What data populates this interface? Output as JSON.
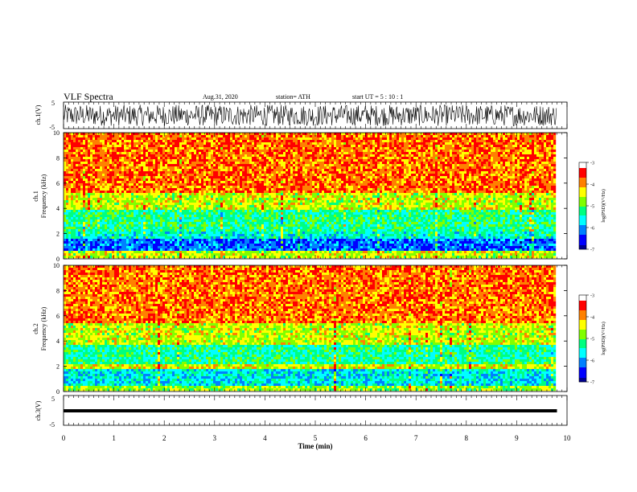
{
  "header": {
    "title": "VLF Spectra",
    "date": "Aug.31, 2020",
    "station": "station= ATH",
    "start": "start  UT =   5  : 10 : 1"
  },
  "chart_data": [
    {
      "type": "line",
      "name": "ch1-waveform",
      "ylabel": "ch.1(V)",
      "ylim": [
        -5,
        5
      ],
      "yticks": [
        "5",
        "-5"
      ],
      "xlim": [
        0,
        10
      ],
      "x_extent_data": 9.8,
      "envelope": {
        "min": -4,
        "max": 4
      }
    },
    {
      "type": "heatmap",
      "name": "ch1-spectrogram",
      "ylabel": "ch.1\nFrequency (kHz)",
      "ylim": [
        0,
        10
      ],
      "yticks": [
        "0",
        "2",
        "4",
        "6",
        "8",
        "10"
      ],
      "xlim": [
        0,
        10
      ],
      "x_extent_data": 9.8,
      "colorbar": {
        "label": "log(PSD)(V²/Hz)",
        "range": [
          -7,
          -3
        ],
        "ticks": [
          "-3",
          "-4",
          "-5",
          "-6",
          "-7"
        ]
      },
      "frequency_bands_kHz": [
        {
          "from": 0.0,
          "to": 0.7,
          "level": -4.3
        },
        {
          "from": 0.7,
          "to": 1.5,
          "level": -6.0
        },
        {
          "from": 1.5,
          "to": 2.2,
          "level": -5.3
        },
        {
          "from": 2.2,
          "to": 3.9,
          "level": -5.0
        },
        {
          "from": 3.9,
          "to": 5.2,
          "level": -4.3
        },
        {
          "from": 5.2,
          "to": 10.0,
          "level": -3.6
        }
      ]
    },
    {
      "type": "heatmap",
      "name": "ch2-spectrogram",
      "ylabel": "ch.2\nFrequency (kHz)",
      "ylim": [
        0,
        10
      ],
      "yticks": [
        "0",
        "2",
        "4",
        "6",
        "8",
        "10"
      ],
      "xlim": [
        0,
        10
      ],
      "x_extent_data": 9.8,
      "colorbar": {
        "label": "log(PSD)(V²/Hz)",
        "range": [
          -7,
          -3
        ],
        "ticks": [
          "-3",
          "-4",
          "-5",
          "-6",
          "-7"
        ]
      },
      "frequency_bands_kHz": [
        {
          "from": 0.0,
          "to": 0.5,
          "level": -4.5
        },
        {
          "from": 0.5,
          "to": 1.8,
          "level": -5.4
        },
        {
          "from": 1.8,
          "to": 2.1,
          "level": -4.2
        },
        {
          "from": 2.1,
          "to": 3.7,
          "level": -5.1
        },
        {
          "from": 3.7,
          "to": 5.5,
          "level": -4.3
        },
        {
          "from": 5.5,
          "to": 10.0,
          "level": -3.6
        }
      ]
    },
    {
      "type": "line",
      "name": "ch3-waveform",
      "ylabel": "ch.3(V)",
      "ylim": [
        -5,
        5
      ],
      "yticks": [
        "5",
        "-5"
      ],
      "xlim": [
        0,
        10
      ],
      "x_extent_data": 9.8,
      "level": 0,
      "xlabel": "Time (min)",
      "xticks": [
        "0",
        "1",
        "2",
        "3",
        "4",
        "5",
        "6",
        "7",
        "8",
        "9",
        "10"
      ]
    }
  ],
  "colors": {
    "colormap": [
      "#00008f",
      "#0000ff",
      "#0080ff",
      "#00ffff",
      "#00ff80",
      "#80ff00",
      "#ffff00",
      "#ff8000",
      "#ff0000",
      "#ffffff"
    ]
  }
}
